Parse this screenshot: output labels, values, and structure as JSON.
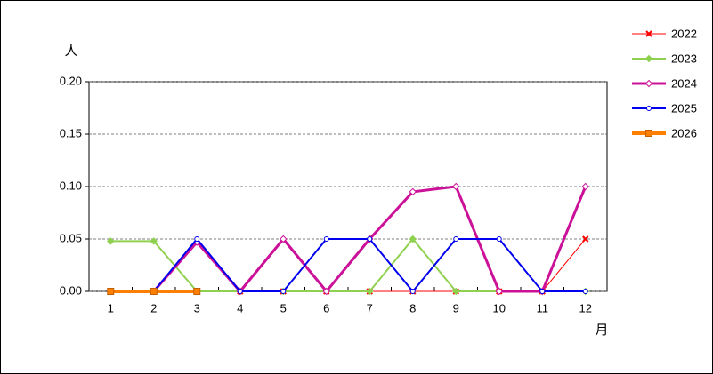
{
  "chart_data": {
    "type": "line",
    "y_label": "人",
    "x_label": "月",
    "categories": [
      "1",
      "2",
      "3",
      "4",
      "5",
      "6",
      "7",
      "8",
      "9",
      "10",
      "11",
      "12"
    ],
    "ylim": [
      0,
      0.2
    ],
    "yticks": [
      {
        "value": 0,
        "label": "0.00"
      },
      {
        "value": 0.05,
        "label": "0.05"
      },
      {
        "value": 0.1,
        "label": "0.10"
      },
      {
        "value": 0.15,
        "label": "0.15"
      },
      {
        "value": 0.2,
        "label": "0.20"
      }
    ],
    "grid": true,
    "legend": "right",
    "series": [
      {
        "name": "2022",
        "color": "#ff0000",
        "marker": "x",
        "line_width": 1,
        "values": [
          0,
          0,
          0,
          0,
          0,
          0,
          0,
          0,
          0,
          0,
          0,
          0.05
        ]
      },
      {
        "name": "2023",
        "color": "#8fd14f",
        "marker": "diamond",
        "line_width": 2,
        "values": [
          0.048,
          0.048,
          0,
          0,
          0,
          0,
          0,
          0.05,
          0,
          0,
          0,
          0
        ]
      },
      {
        "name": "2024",
        "color": "#cc1199",
        "marker": "hollow-diamond",
        "line_width": 3,
        "values": [
          0,
          0,
          0.047,
          0,
          0.05,
          0,
          0.05,
          0.095,
          0.1,
          0,
          0,
          0.1
        ]
      },
      {
        "name": "2025",
        "color": "#0000ee",
        "marker": "circle",
        "line_width": 2,
        "values": [
          0,
          0,
          0.05,
          0,
          0,
          0.05,
          0.05,
          0,
          0.05,
          0.05,
          0,
          0
        ]
      },
      {
        "name": "2026",
        "color": "#ff7f00",
        "marker": "square",
        "line_width": 4,
        "values": [
          0,
          0,
          0,
          null,
          null,
          null,
          null,
          null,
          null,
          null,
          null,
          null
        ]
      }
    ]
  }
}
